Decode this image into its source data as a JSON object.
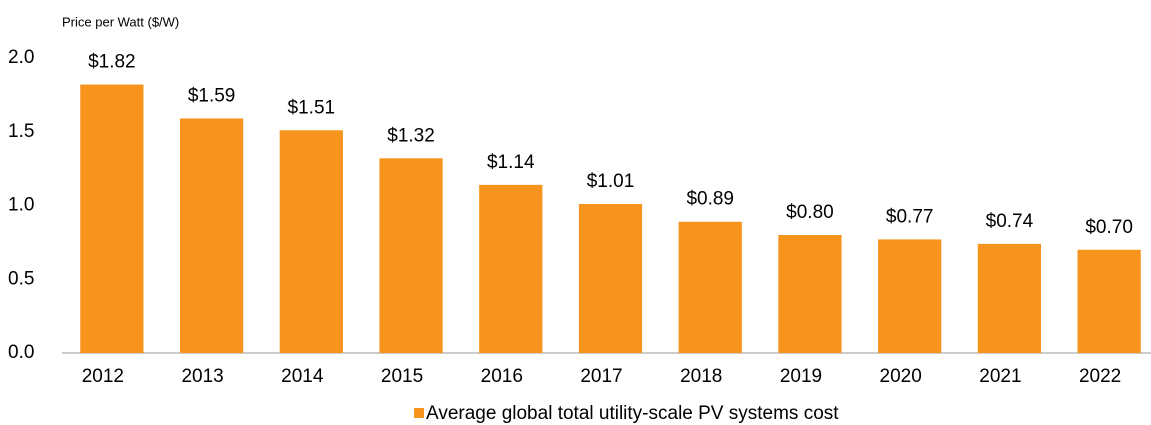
{
  "chart_data": {
    "type": "bar",
    "y_axis_label": "Price per Watt ($/W)",
    "categories": [
      "2012",
      "2013",
      "2014",
      "2015",
      "2016",
      "2017",
      "2018",
      "2019",
      "2020",
      "2021",
      "2022"
    ],
    "series": [
      {
        "name": "Average global total utility-scale PV systems cost",
        "color": "#f7941d",
        "values": [
          1.82,
          1.59,
          1.51,
          1.32,
          1.14,
          1.01,
          0.89,
          0.8,
          0.77,
          0.74,
          0.7
        ],
        "value_labels": [
          "$1.82",
          "$1.59",
          "$1.51",
          "$1.32",
          "$1.14",
          "$1.01",
          "$0.89",
          "$0.80",
          "$0.77",
          "$0.74",
          "$0.70"
        ]
      }
    ],
    "ylim": [
      0,
      2.0
    ],
    "yticks": [
      {
        "value": 0,
        "label": "0.0"
      },
      0.5,
      {
        "value": 1,
        "label": "1.0"
      },
      1.5,
      {
        "value": 2,
        "label": "2.0"
      }
    ],
    "grid": false,
    "legend": "bottom"
  }
}
